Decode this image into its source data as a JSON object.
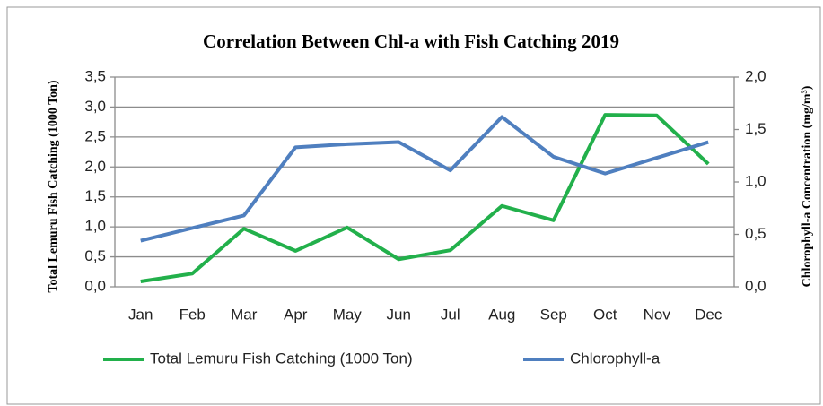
{
  "chart_data": {
    "type": "line",
    "title": "Correlation  Between Chl-a with Fish Catching 2019",
    "y_label": "Total Lemuru Fish Catching (1000 Ton)",
    "y2_label": "Chlorophyll-a Concentration (mg/m³)",
    "categories": [
      "Jan",
      "Feb",
      "Mar",
      "Apr",
      "May",
      "Jun",
      "Jul",
      "Aug",
      "Sep",
      "Oct",
      "Nov",
      "Dec"
    ],
    "series": [
      {
        "name": "Total Lemuru Fish Catching (1000 Ton)",
        "color": "#22b04b",
        "axis": "y",
        "values": [
          0.09,
          0.22,
          0.97,
          0.6,
          0.99,
          0.46,
          0.61,
          1.35,
          1.11,
          2.87,
          2.86,
          2.05
        ]
      },
      {
        "name": "Chlorophyll-a",
        "color": "#4f7fbf",
        "axis": "y2",
        "values": [
          0.44,
          0.56,
          0.68,
          1.33,
          1.36,
          1.38,
          1.11,
          1.62,
          1.24,
          1.08,
          1.23,
          1.38
        ]
      }
    ],
    "ylim": [
      0,
      3.5
    ],
    "yticks": [
      {
        "value": 0,
        "label": "0,0"
      },
      {
        "value": 0.5,
        "label": "0,5"
      },
      {
        "value": 1,
        "label": "1,0"
      },
      {
        "value": 1.5,
        "label": "1,5"
      },
      {
        "value": 2,
        "label": "2,0"
      },
      {
        "value": 2.5,
        "label": "2,5"
      },
      {
        "value": 3,
        "label": "3,0"
      },
      {
        "value": 3.5,
        "label": "3,5"
      }
    ],
    "y2lim": [
      0,
      2
    ],
    "y2ticks": [
      {
        "value": 0,
        "label": "0,0"
      },
      {
        "value": 0.5,
        "label": "0,5"
      },
      {
        "value": 1,
        "label": "1,0"
      },
      {
        "value": 1.5,
        "label": "1,5"
      },
      {
        "value": 2,
        "label": "2,0"
      }
    ],
    "grid": true,
    "legend": "bottom"
  }
}
